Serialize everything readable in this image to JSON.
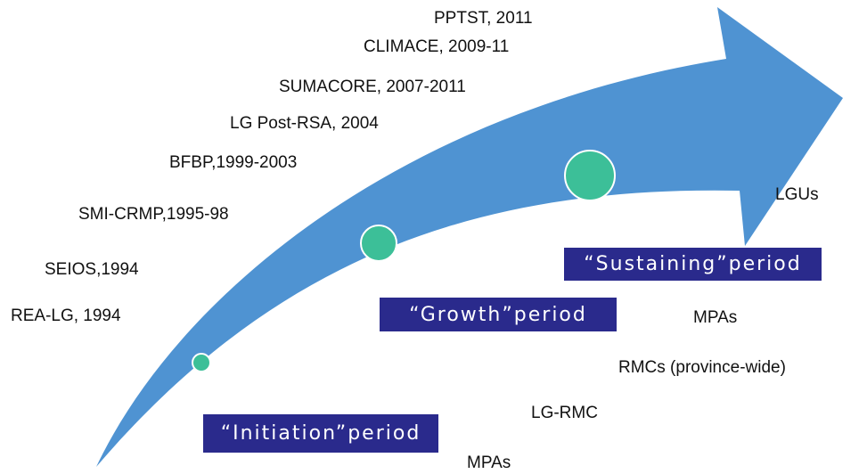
{
  "programs": [
    "PPTST, 2011",
    "CLIMACE, 2009-11",
    "SUMACORE, 2007-2011",
    "LG Post-RSA, 2004",
    "BFBP,1999-2003",
    "SMI-CRMP,1995-98",
    "SEIOS,1994",
    "REA-LG, 1994"
  ],
  "periods": [
    "“Initiation”period",
    "“Growth”period",
    "“Sustaining”period"
  ],
  "outcomes": [
    "LGUs",
    "MPAs",
    "RMCs (province-wide)",
    "LG-RMC",
    "MPAs"
  ]
}
